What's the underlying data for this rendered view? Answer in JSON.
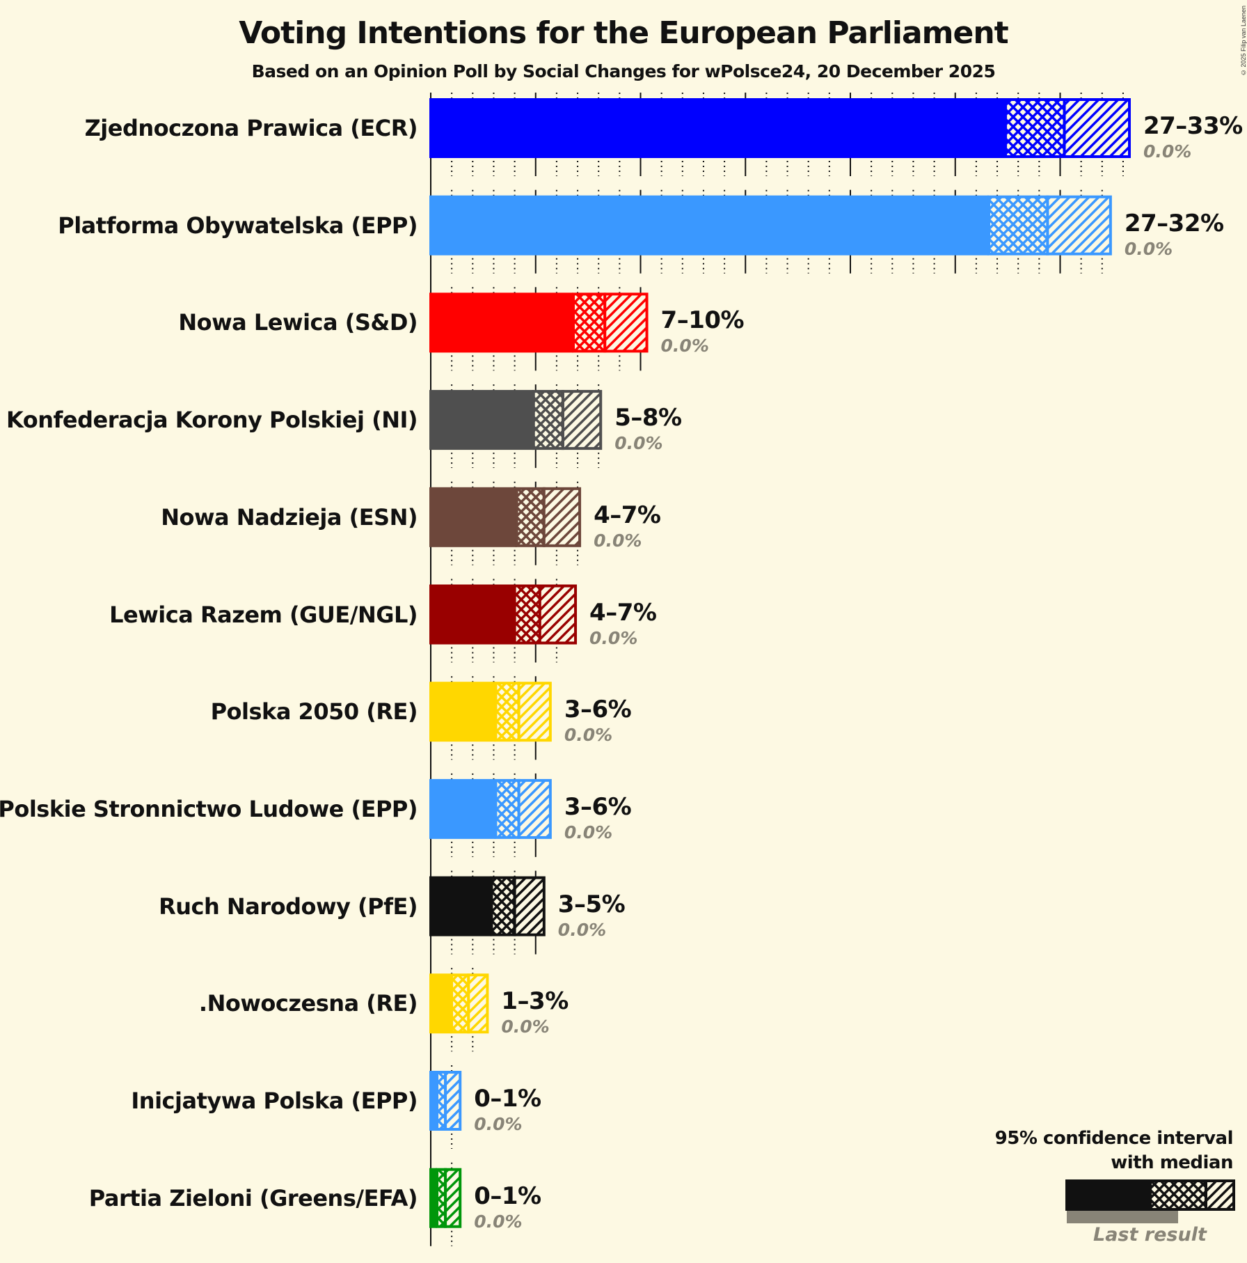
{
  "header": {
    "title": "Voting Intentions for the European Parliament",
    "subtitle": "Based on an Opinion Poll by Social Changes for wPolsce24, 20 December 2025",
    "copyright": "© 2025 Filip van Laenen"
  },
  "legend": {
    "line1": "95% confidence interval",
    "line2": "with median",
    "last_result": "Last result"
  },
  "colors": {
    "background": "#fdf9e3",
    "gridline": "#111111",
    "last_result": "#888477"
  },
  "chart_data": {
    "type": "bar",
    "orientation": "horizontal",
    "title": "Voting Intentions for the European Parliament",
    "subtitle": "Based on an Opinion Poll by Social Changes for wPolsce24, 20 December 2025",
    "xlabel": "",
    "ylabel": "",
    "xlim": [
      0,
      35
    ],
    "grid": {
      "minor_step": 1,
      "major_step": 5,
      "style_minor": "dotted",
      "style_major": "solid"
    },
    "legend_position": "bottom-right",
    "categories": [
      "Zjednoczona Prawica (ECR)",
      "Platforma Obywatelska (EPP)",
      "Nowa Lewica (S&D)",
      "Konfederacja Korony Polskiej (NI)",
      "Nowa Nadzieja (ESN)",
      "Lewica Razem (GUE/NGL)",
      "Polska 2050 (RE)",
      "Polskie Stronnictwo Ludowe (EPP)",
      "Ruch Narodowy (PfE)",
      ".Nowoczesna (RE)",
      "Inicjatywa Polska (EPP)",
      "Partia Zieloni (Greens/EFA)"
    ],
    "series": [
      {
        "name": "CI low",
        "values": [
          27.4,
          26.6,
          6.8,
          4.9,
          4.1,
          4.0,
          3.1,
          3.1,
          2.9,
          1.0,
          0.3,
          0.3
        ]
      },
      {
        "name": "Median",
        "values": [
          30.2,
          29.4,
          8.3,
          6.3,
          5.4,
          5.2,
          4.2,
          4.2,
          4.0,
          1.8,
          0.7,
          0.7
        ]
      },
      {
        "name": "CI high",
        "values": [
          33.3,
          32.4,
          10.3,
          8.1,
          7.1,
          6.9,
          5.7,
          5.7,
          5.4,
          2.7,
          1.4,
          1.4
        ]
      },
      {
        "name": "Last result",
        "values": [
          0.0,
          0.0,
          0.0,
          0.0,
          0.0,
          0.0,
          0.0,
          0.0,
          0.0,
          0.0,
          0.0,
          0.0
        ]
      }
    ],
    "range_labels": [
      "27–33%",
      "27–32%",
      "7–10%",
      "5–8%",
      "4–7%",
      "4–7%",
      "3–6%",
      "3–6%",
      "3–5%",
      "1–3%",
      "0–1%",
      "0–1%"
    ],
    "last_labels": [
      "0.0%",
      "0.0%",
      "0.0%",
      "0.0%",
      "0.0%",
      "0.0%",
      "0.0%",
      "0.0%",
      "0.0%",
      "0.0%",
      "0.0%",
      "0.0%"
    ],
    "bar_colors": [
      "#0000ff",
      "#3a98ff",
      "#ff0000",
      "#4f4f4f",
      "#6d473b",
      "#990000",
      "#ffd700",
      "#3a98ff",
      "#111111",
      "#ffd700",
      "#3a98ff",
      "#00960a"
    ]
  }
}
